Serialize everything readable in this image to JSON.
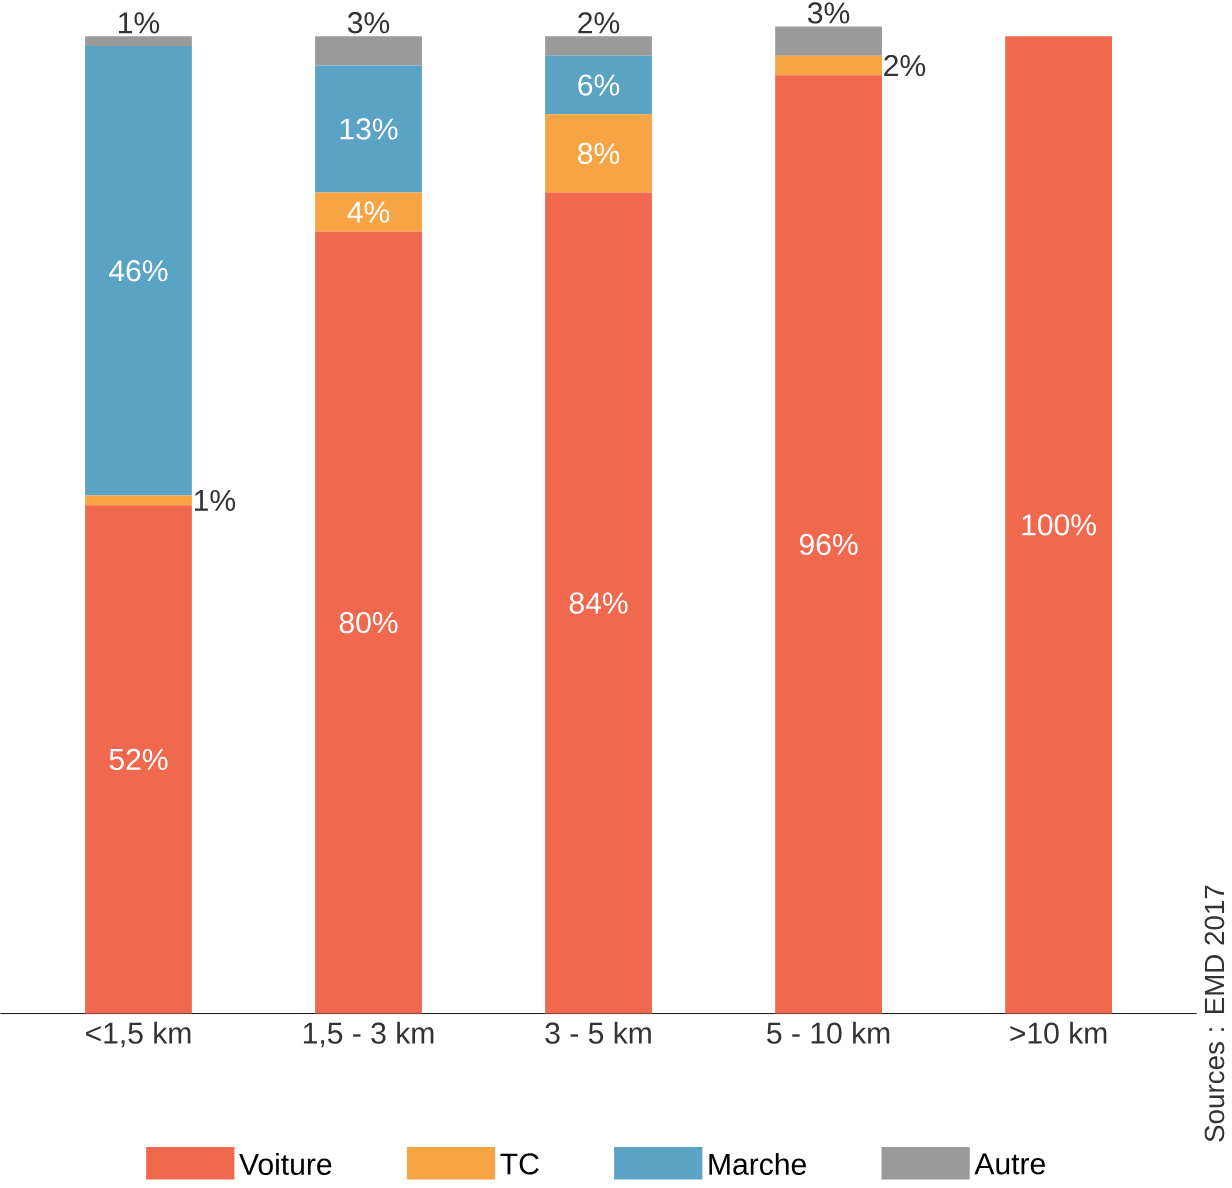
{
  "chart_data": {
    "type": "bar",
    "stacked": true,
    "categories": [
      "<1,5 km",
      "1,5 - 3 km",
      "3 - 5 km",
      "5 - 10 km",
      ">10 km"
    ],
    "series": [
      {
        "name": "Voiture",
        "color": "#f0694f",
        "values": [
          52,
          80,
          84,
          96,
          100
        ],
        "value_labels": [
          "52%",
          "80%",
          "84%",
          "96%",
          "100%"
        ]
      },
      {
        "name": "TC",
        "color": "#f7a444",
        "values": [
          1,
          4,
          8,
          2,
          0
        ],
        "value_labels": [
          "1%",
          "4%",
          "8%",
          "2%",
          null
        ]
      },
      {
        "name": "Marche",
        "color": "#5aa3c4",
        "values": [
          46,
          13,
          6,
          0,
          0
        ],
        "value_labels": [
          "46%",
          "13%",
          "6%",
          null,
          null
        ]
      },
      {
        "name": "Autre",
        "color": "#9a9a9a",
        "values": [
          1,
          3,
          2,
          3,
          0
        ],
        "value_labels": [
          "1%",
          "3%",
          "2%",
          "3%",
          null
        ]
      }
    ],
    "ylim": [
      0,
      101
    ],
    "tick_labels": "x",
    "legend": "bottom",
    "grid": false,
    "annotations": [
      "Sources : EMD 2017"
    ]
  }
}
